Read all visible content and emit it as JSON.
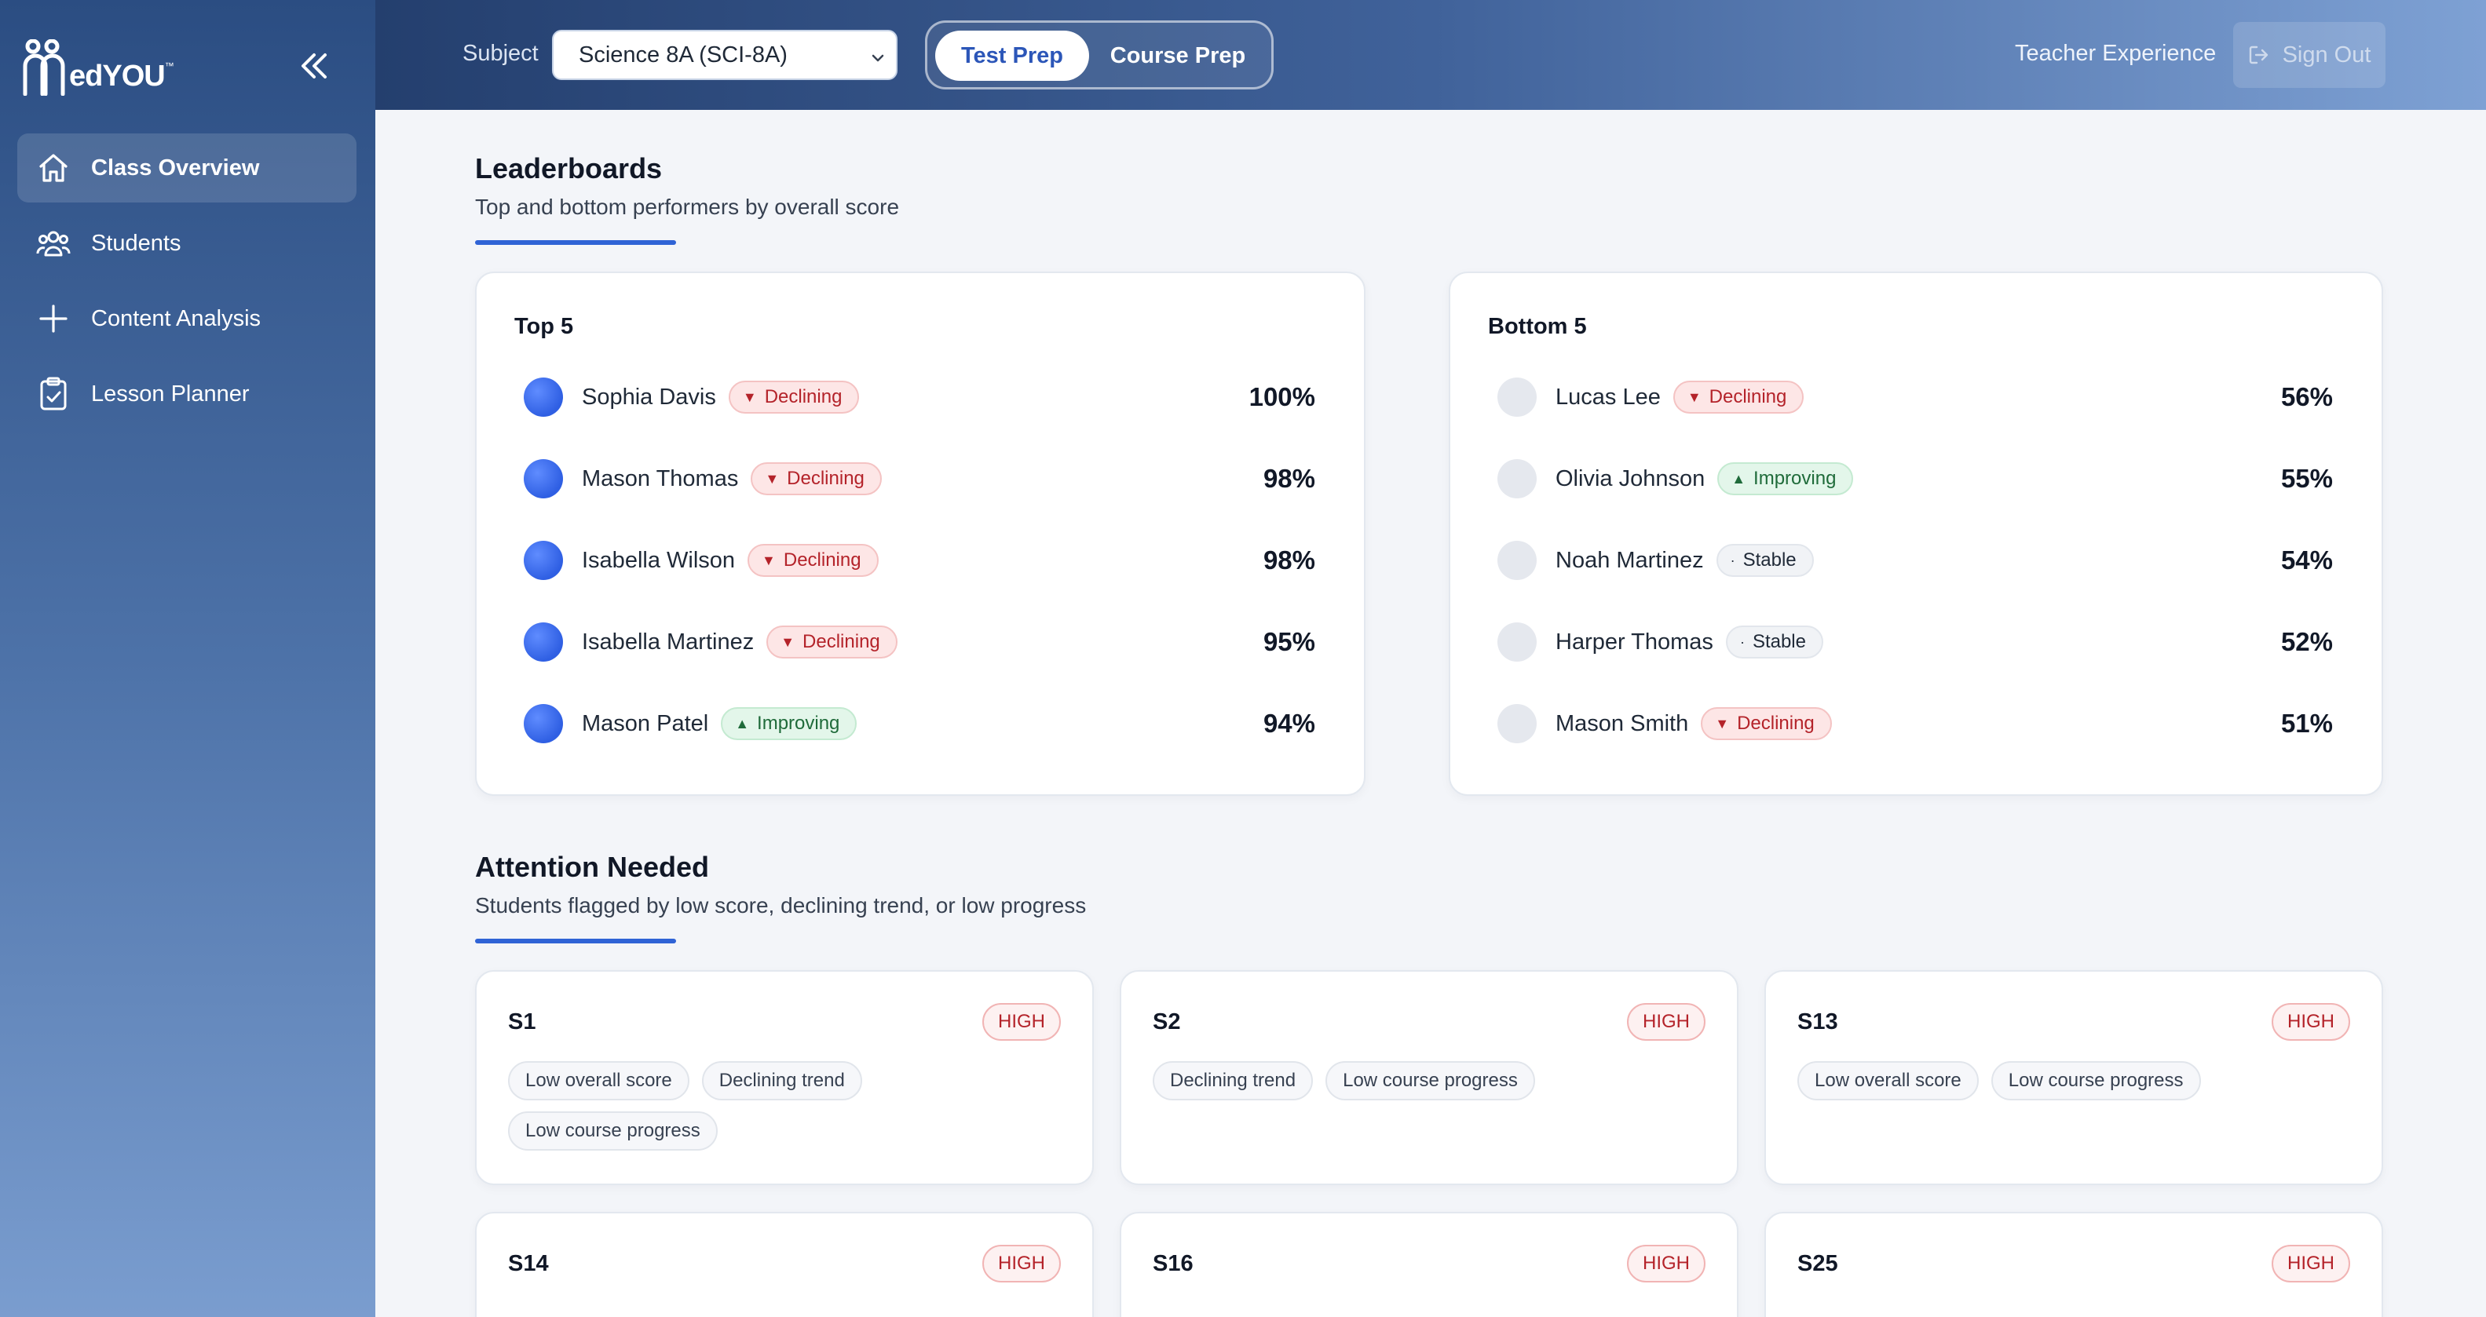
{
  "app": {
    "logo_text": "edYOU",
    "logo_mark": "™"
  },
  "sidebar": {
    "items": [
      {
        "label": "Class Overview",
        "icon": "home-icon",
        "active": true
      },
      {
        "label": "Students",
        "icon": "users-icon",
        "active": false
      },
      {
        "label": "Content Analysis",
        "icon": "plus-icon",
        "active": false
      },
      {
        "label": "Lesson Planner",
        "icon": "clipboard-icon",
        "active": false
      }
    ]
  },
  "topbar": {
    "subject_label": "Subject",
    "subject_value": "Science 8A (SCI-8A)",
    "mode_active": "Test Prep",
    "mode_inactive": "Course Prep",
    "teacher_experience": "Teacher Experience",
    "sign_out": "Sign Out"
  },
  "leaderboards": {
    "title": "Leaderboards",
    "subtitle": "Top and bottom performers by overall score",
    "top": {
      "title": "Top 5",
      "rows": [
        {
          "name": "Sophia Davis",
          "trend": "Declining",
          "score": "100%"
        },
        {
          "name": "Mason Thomas",
          "trend": "Declining",
          "score": "98%"
        },
        {
          "name": "Isabella Wilson",
          "trend": "Declining",
          "score": "98%"
        },
        {
          "name": "Isabella Martinez",
          "trend": "Declining",
          "score": "95%"
        },
        {
          "name": "Mason Patel",
          "trend": "Improving",
          "score": "94%"
        }
      ]
    },
    "bottom": {
      "title": "Bottom 5",
      "rows": [
        {
          "name": "Lucas Lee",
          "trend": "Declining",
          "score": "56%"
        },
        {
          "name": "Olivia Johnson",
          "trend": "Improving",
          "score": "55%"
        },
        {
          "name": "Noah Martinez",
          "trend": "Stable",
          "score": "54%"
        },
        {
          "name": "Harper Thomas",
          "trend": "Stable",
          "score": "52%"
        },
        {
          "name": "Mason Smith",
          "trend": "Declining",
          "score": "51%"
        }
      ]
    }
  },
  "attention": {
    "title": "Attention Needed",
    "subtitle": "Students flagged by low score, declining trend, or low progress",
    "cards": [
      {
        "id": "S1",
        "level": "HIGH",
        "tags": [
          "Low overall score",
          "Declining trend",
          "Low course progress"
        ]
      },
      {
        "id": "S2",
        "level": "HIGH",
        "tags": [
          "Declining trend",
          "Low course progress"
        ]
      },
      {
        "id": "S13",
        "level": "HIGH",
        "tags": [
          "Low overall score",
          "Low course progress"
        ]
      },
      {
        "id": "S14",
        "level": "HIGH",
        "tags": []
      },
      {
        "id": "S16",
        "level": "HIGH",
        "tags": []
      },
      {
        "id": "S25",
        "level": "HIGH",
        "tags": []
      }
    ]
  },
  "colors": {
    "accent": "#2f63d6",
    "declining": "#b4232a",
    "improving": "#1f6b3a",
    "high": "#b4232a"
  }
}
